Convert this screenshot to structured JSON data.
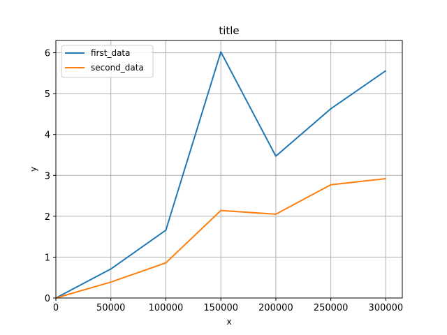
{
  "chart_data": {
    "type": "line",
    "title": "title",
    "xlabel": "x",
    "ylabel": "y",
    "x": [
      0,
      50000,
      100000,
      150000,
      200000,
      250000,
      300000
    ],
    "x_ticks": [
      "0",
      "50000",
      "100000",
      "150000",
      "200000",
      "250000",
      "300000"
    ],
    "y_ticks": [
      "0",
      "1",
      "2",
      "3",
      "4",
      "5",
      "6"
    ],
    "xlim": [
      0,
      315000
    ],
    "ylim": [
      0,
      6.3
    ],
    "grid": true,
    "legend_position": "upper-left",
    "series": [
      {
        "name": "first_data",
        "color": "#1f77b4",
        "values": [
          0,
          0.71,
          1.66,
          6.02,
          3.47,
          4.63,
          5.56
        ]
      },
      {
        "name": "second_data",
        "color": "#ff7f0e",
        "values": [
          0,
          0.39,
          0.86,
          2.14,
          2.05,
          2.77,
          2.92
        ]
      }
    ]
  }
}
